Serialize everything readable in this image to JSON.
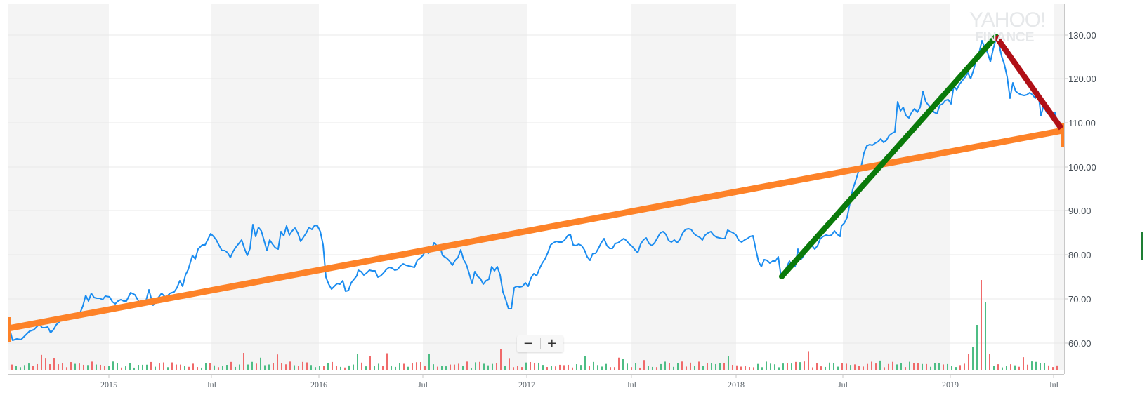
{
  "chart_data": {
    "type": "line",
    "title": "",
    "watermark": {
      "line1": "YAHOO!",
      "line2": "FINANCE"
    },
    "xlabel": "",
    "ylabel": "",
    "ylim": [
      55,
      135
    ],
    "y_ticks": [
      "130.00",
      "120.00",
      "110.00",
      "100.00",
      "90.00",
      "80.00",
      "70.00",
      "60.00"
    ],
    "x_ticks": [
      "2015",
      "Jul",
      "2016",
      "Jul",
      "2017",
      "Jul",
      "2018",
      "Jul",
      "2019",
      "Jul"
    ],
    "grid": true,
    "colors": {
      "price": "#1a8cf0",
      "volume_up": "#4dbd84",
      "volume_down": "#f06a6a",
      "trend_long": "#fd8228",
      "trend_up": "#0a7a0a",
      "trend_down": "#b00f16"
    },
    "series": [
      {
        "name": "Price (weekly close, approx.)",
        "x": [
          "2014-09",
          "2014-10",
          "2014-11",
          "2014-12",
          "2015-01",
          "2015-02",
          "2015-03",
          "2015-04",
          "2015-05",
          "2015-06",
          "2015-07",
          "2015-08",
          "2015-09",
          "2015-10",
          "2015-11",
          "2015-12",
          "2016-01",
          "2016-02",
          "2016-03",
          "2016-04",
          "2016-05",
          "2016-06",
          "2016-07",
          "2016-08",
          "2016-09",
          "2016-10",
          "2016-11",
          "2016-12",
          "2017-01",
          "2017-02",
          "2017-03",
          "2017-04",
          "2017-05",
          "2017-06",
          "2017-07",
          "2017-08",
          "2017-09",
          "2017-10",
          "2017-11",
          "2017-12",
          "2018-01",
          "2018-02",
          "2018-03",
          "2018-04",
          "2018-05",
          "2018-06",
          "2018-07",
          "2018-08",
          "2018-09",
          "2018-10",
          "2018-11",
          "2018-12",
          "2019-01",
          "2019-02",
          "2019-03",
          "2019-04",
          "2019-05",
          "2019-06",
          "2019-07"
        ],
        "values": [
          61,
          62,
          66,
          66,
          70,
          71,
          70,
          72,
          76,
          73,
          87,
          85,
          84,
          87,
          81,
          85,
          82,
          72,
          74,
          77,
          75,
          74,
          80,
          82,
          79,
          82,
          69,
          74,
          75,
          76,
          83,
          84,
          85,
          82,
          78,
          81,
          83,
          78,
          82,
          86,
          84,
          86,
          79,
          79,
          81,
          84,
          100,
          105,
          106,
          113,
          116,
          114,
          116,
          121,
          129,
          124,
          117,
          115,
          108
        ]
      },
      {
        "name": "Long-term trend line",
        "points": [
          {
            "date": "2014-09",
            "value": 63.5
          },
          {
            "date": "2019-07",
            "value": 107.5
          }
        ]
      },
      {
        "name": "Uptrend line",
        "points": [
          {
            "date": "2018-05",
            "value": 75
          },
          {
            "date": "2019-04",
            "value": 130
          }
        ]
      },
      {
        "name": "Downtrend line",
        "points": [
          {
            "date": "2019-04",
            "value": 130
          },
          {
            "date": "2019-07",
            "value": 108
          }
        ]
      },
      {
        "name": "Volume (relative)",
        "values_note": "weekly bars, mostly small; spike around 2019-03/04"
      }
    ]
  },
  "controls": {
    "zoom_out": "−",
    "zoom_in": "+"
  }
}
